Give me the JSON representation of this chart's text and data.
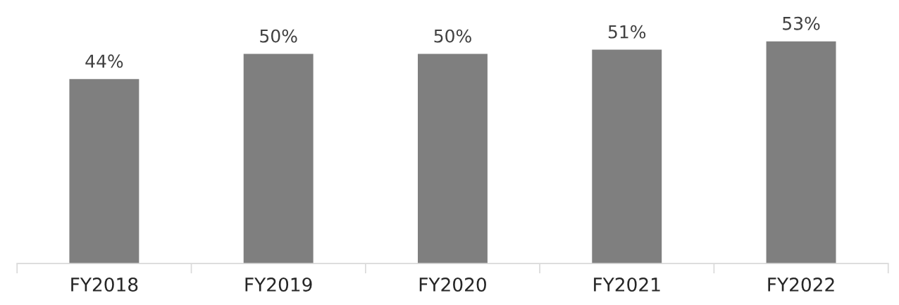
{
  "chart_data": {
    "type": "bar",
    "categories": [
      "FY2018",
      "FY2019",
      "FY2020",
      "FY2021",
      "FY2022"
    ],
    "values": [
      44,
      50,
      50,
      51,
      53
    ],
    "value_labels": [
      "44%",
      "50%",
      "50%",
      "51%",
      "53%"
    ],
    "color": "#7f7f7f",
    "tick_labels": "x",
    "grid": false,
    "legend": false
  }
}
